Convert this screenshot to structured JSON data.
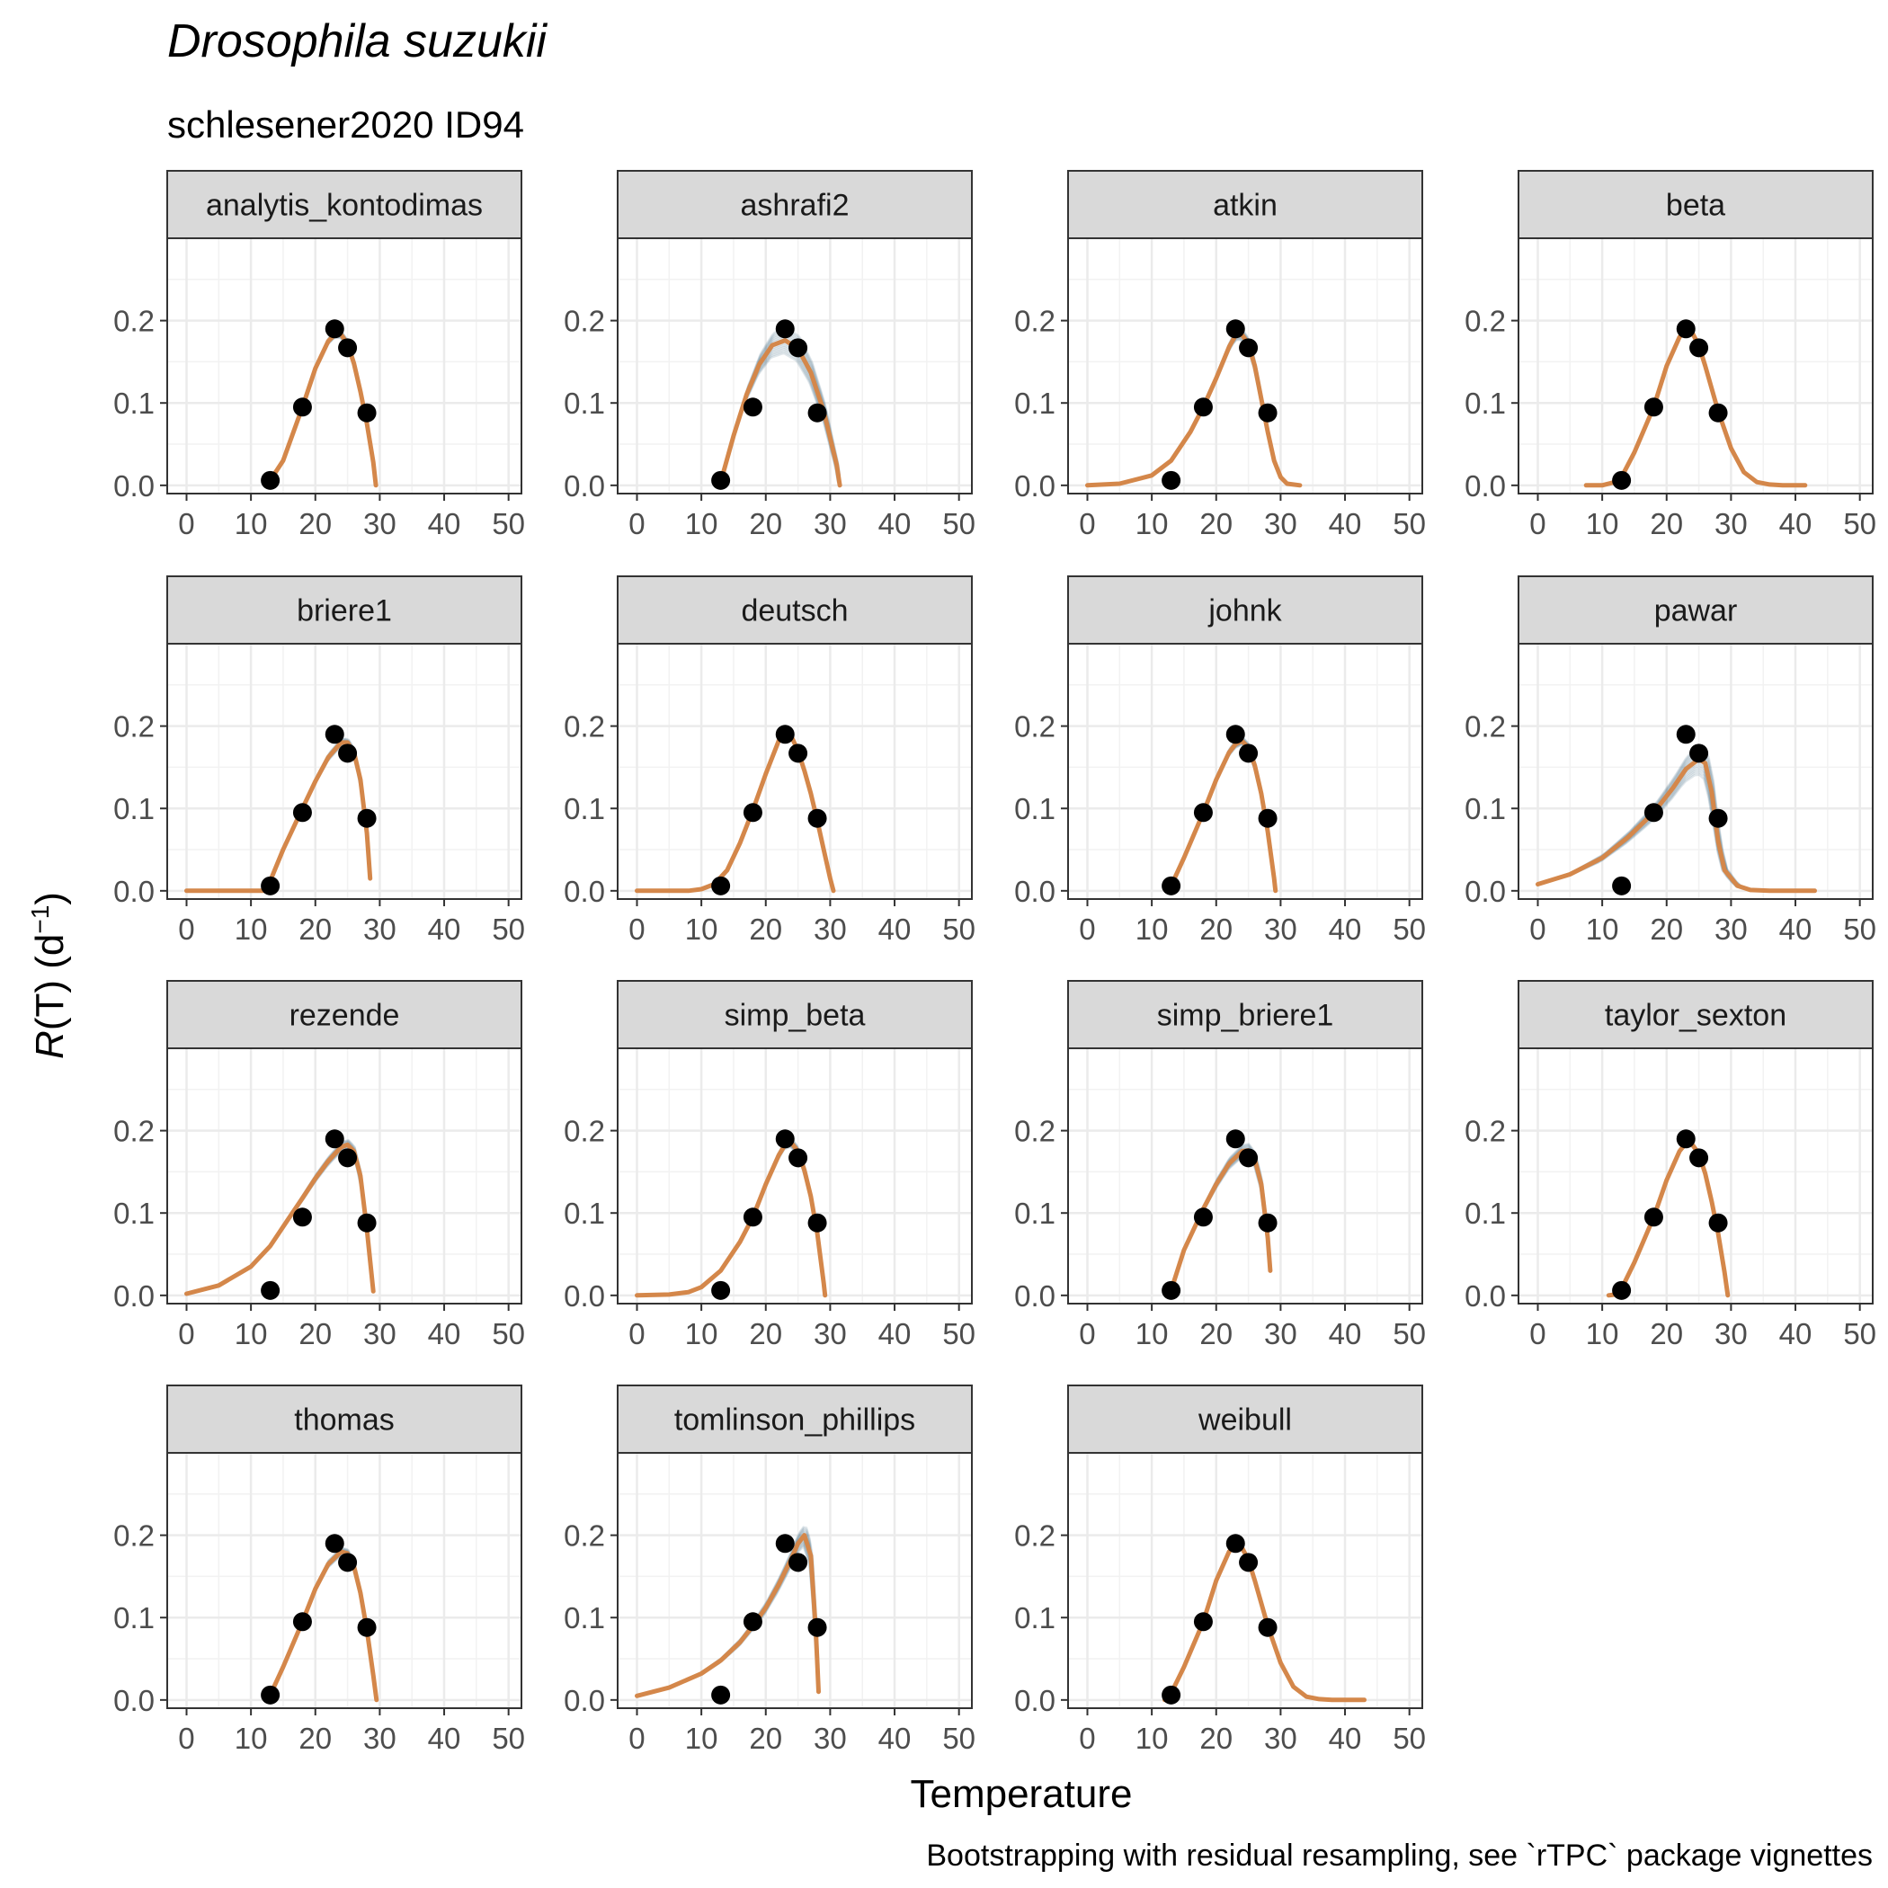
{
  "title": "Drosophila suzukii",
  "subtitle": "schlesener2020 ID94",
  "caption": "Bootstrapping with residual resampling, see `rTPC` package vignettes",
  "xlabel": "Temperature",
  "ylabel": "R(T) (d⁻¹)",
  "ylabel_parts": {
    "italic": "R",
    "rest": "(T) (d",
    "sup": "−1",
    "close": ")"
  },
  "colors": {
    "fit": "#D4874A",
    "bootstrap": "#1B4F6B",
    "points": "#000000",
    "strip": "#D9D9D9",
    "grid": "#EBEBEB"
  },
  "chart_data": {
    "type": "scatter",
    "layout": "facet-grid 4 columns",
    "xlim": [
      -3,
      52
    ],
    "ylim": [
      -0.01,
      0.3
    ],
    "x_ticks": [
      0,
      10,
      20,
      30,
      40,
      50
    ],
    "y_ticks": [
      0.0,
      0.1,
      0.2
    ],
    "y_tick_labels": [
      "0.0",
      "0.1",
      "0.2"
    ],
    "points": [
      [
        13,
        0.006
      ],
      [
        18,
        0.095
      ],
      [
        23,
        0.19
      ],
      [
        25,
        0.167
      ],
      [
        28,
        0.088
      ]
    ],
    "panels": [
      {
        "name": "analytis_kontodimas",
        "fit_range": [
          12.8,
          29.4
        ],
        "fit": [
          [
            12.8,
            0.0
          ],
          [
            13,
            0.006
          ],
          [
            15,
            0.03
          ],
          [
            18,
            0.095
          ],
          [
            20,
            0.142
          ],
          [
            22,
            0.175
          ],
          [
            23,
            0.183
          ],
          [
            24,
            0.183
          ],
          [
            25,
            0.172
          ],
          [
            26,
            0.148
          ],
          [
            27,
            0.114
          ],
          [
            28,
            0.075
          ],
          [
            29,
            0.028
          ],
          [
            29.4,
            0.0
          ]
        ],
        "boot_spread": 0.01
      },
      {
        "name": "ashrafi2",
        "fit_range": [
          13.0,
          31.5
        ],
        "fit": [
          [
            13,
            0.004
          ],
          [
            15,
            0.06
          ],
          [
            17,
            0.11
          ],
          [
            19,
            0.147
          ],
          [
            21,
            0.17
          ],
          [
            23,
            0.176
          ],
          [
            25,
            0.166
          ],
          [
            27,
            0.137
          ],
          [
            29,
            0.09
          ],
          [
            31,
            0.025
          ],
          [
            31.5,
            0.0
          ]
        ],
        "boot_spread": 0.04
      },
      {
        "name": "atkin",
        "fit_range": [
          0,
          33
        ],
        "fit": [
          [
            0,
            0.0
          ],
          [
            5,
            0.002
          ],
          [
            10,
            0.012
          ],
          [
            13,
            0.03
          ],
          [
            16,
            0.065
          ],
          [
            18,
            0.095
          ],
          [
            20,
            0.13
          ],
          [
            22,
            0.168
          ],
          [
            23,
            0.182
          ],
          [
            24,
            0.183
          ],
          [
            25,
            0.172
          ],
          [
            26,
            0.145
          ],
          [
            27,
            0.105
          ],
          [
            28,
            0.065
          ],
          [
            29,
            0.03
          ],
          [
            30,
            0.01
          ],
          [
            31,
            0.002
          ],
          [
            33,
            0.0
          ]
        ],
        "boot_spread": 0.015
      },
      {
        "name": "beta",
        "fit_range": [
          7.5,
          41.5
        ],
        "fit": [
          [
            7.5,
            0.0
          ],
          [
            10,
            0.0
          ],
          [
            12,
            0.004
          ],
          [
            13,
            0.01
          ],
          [
            15,
            0.04
          ],
          [
            18,
            0.095
          ],
          [
            20,
            0.145
          ],
          [
            22,
            0.18
          ],
          [
            23,
            0.188
          ],
          [
            24,
            0.185
          ],
          [
            25,
            0.17
          ],
          [
            26,
            0.145
          ],
          [
            28,
            0.09
          ],
          [
            30,
            0.045
          ],
          [
            32,
            0.016
          ],
          [
            34,
            0.004
          ],
          [
            36,
            0.001
          ],
          [
            38,
            0.0
          ],
          [
            41.5,
            0.0
          ]
        ],
        "boot_spread": 0.004
      },
      {
        "name": "briere1",
        "fit_range": [
          0,
          28.5
        ],
        "fit": [
          [
            0,
            0.0
          ],
          [
            11.5,
            0.0
          ],
          [
            12,
            0.0
          ],
          [
            13,
            0.012
          ],
          [
            15,
            0.05
          ],
          [
            18,
            0.1
          ],
          [
            20,
            0.133
          ],
          [
            22,
            0.162
          ],
          [
            24,
            0.18
          ],
          [
            25,
            0.18
          ],
          [
            26,
            0.168
          ],
          [
            27,
            0.135
          ],
          [
            28,
            0.07
          ],
          [
            28.5,
            0.015
          ]
        ],
        "boot_spread": 0.012
      },
      {
        "name": "deutsch",
        "fit_range": [
          0,
          30.5
        ],
        "fit": [
          [
            0,
            0.0
          ],
          [
            8,
            0.0
          ],
          [
            10,
            0.002
          ],
          [
            12,
            0.008
          ],
          [
            14,
            0.025
          ],
          [
            16,
            0.058
          ],
          [
            18,
            0.098
          ],
          [
            20,
            0.142
          ],
          [
            22,
            0.182
          ],
          [
            23,
            0.192
          ],
          [
            24,
            0.187
          ],
          [
            25,
            0.17
          ],
          [
            26,
            0.146
          ],
          [
            27,
            0.118
          ],
          [
            28,
            0.085
          ],
          [
            29,
            0.05
          ],
          [
            30,
            0.015
          ],
          [
            30.5,
            0.0
          ]
        ],
        "boot_spread": 0.005
      },
      {
        "name": "johnk",
        "fit_range": [
          13,
          29.2
        ],
        "fit": [
          [
            13,
            0.006
          ],
          [
            15,
            0.04
          ],
          [
            18,
            0.095
          ],
          [
            20,
            0.135
          ],
          [
            22,
            0.168
          ],
          [
            23,
            0.178
          ],
          [
            24,
            0.182
          ],
          [
            25,
            0.174
          ],
          [
            26,
            0.152
          ],
          [
            27,
            0.118
          ],
          [
            28,
            0.072
          ],
          [
            29,
            0.015
          ],
          [
            29.2,
            0.0
          ]
        ],
        "boot_spread": 0.012
      },
      {
        "name": "pawar",
        "fit_range": [
          0,
          43
        ],
        "fit": [
          [
            0,
            0.008
          ],
          [
            5,
            0.02
          ],
          [
            10,
            0.04
          ],
          [
            14,
            0.065
          ],
          [
            18,
            0.095
          ],
          [
            21,
            0.125
          ],
          [
            23,
            0.148
          ],
          [
            25,
            0.16
          ],
          [
            26,
            0.155
          ],
          [
            27,
            0.12
          ],
          [
            28,
            0.06
          ],
          [
            29,
            0.025
          ],
          [
            31,
            0.006
          ],
          [
            33,
            0.001
          ],
          [
            36,
            0.0
          ],
          [
            43,
            0.0
          ]
        ],
        "boot_spread": 0.05
      },
      {
        "name": "rezende",
        "fit_range": [
          0,
          29
        ],
        "fit": [
          [
            0,
            0.002
          ],
          [
            5,
            0.012
          ],
          [
            10,
            0.035
          ],
          [
            13,
            0.06
          ],
          [
            16,
            0.095
          ],
          [
            18,
            0.118
          ],
          [
            20,
            0.142
          ],
          [
            22,
            0.163
          ],
          [
            24,
            0.18
          ],
          [
            25,
            0.183
          ],
          [
            26,
            0.175
          ],
          [
            27,
            0.145
          ],
          [
            28,
            0.08
          ],
          [
            29,
            0.005
          ]
        ],
        "boot_spread": 0.015
      },
      {
        "name": "simp_beta",
        "fit_range": [
          0,
          29.2
        ],
        "fit": [
          [
            0,
            0.0
          ],
          [
            5,
            0.001
          ],
          [
            8,
            0.004
          ],
          [
            10,
            0.01
          ],
          [
            13,
            0.03
          ],
          [
            16,
            0.065
          ],
          [
            18,
            0.095
          ],
          [
            20,
            0.135
          ],
          [
            22,
            0.17
          ],
          [
            23,
            0.183
          ],
          [
            24,
            0.185
          ],
          [
            25,
            0.175
          ],
          [
            26,
            0.152
          ],
          [
            27,
            0.12
          ],
          [
            28,
            0.075
          ],
          [
            29,
            0.015
          ],
          [
            29.2,
            0.0
          ]
        ],
        "boot_spread": 0.012
      },
      {
        "name": "simp_briere1",
        "fit_range": [
          13,
          28.4
        ],
        "fit": [
          [
            13,
            0.006
          ],
          [
            15,
            0.055
          ],
          [
            18,
            0.105
          ],
          [
            20,
            0.135
          ],
          [
            22,
            0.16
          ],
          [
            24,
            0.175
          ],
          [
            25,
            0.176
          ],
          [
            26,
            0.165
          ],
          [
            27,
            0.135
          ],
          [
            28,
            0.07
          ],
          [
            28.4,
            0.03
          ]
        ],
        "boot_spread": 0.02
      },
      {
        "name": "taylor_sexton",
        "fit_range": [
          11,
          29.5
        ],
        "fit": [
          [
            11,
            0.0
          ],
          [
            12,
            0.001
          ],
          [
            13,
            0.008
          ],
          [
            15,
            0.04
          ],
          [
            18,
            0.095
          ],
          [
            20,
            0.14
          ],
          [
            22,
            0.175
          ],
          [
            23,
            0.185
          ],
          [
            24,
            0.183
          ],
          [
            25,
            0.172
          ],
          [
            26,
            0.148
          ],
          [
            27,
            0.114
          ],
          [
            28,
            0.075
          ],
          [
            29,
            0.028
          ],
          [
            29.5,
            0.0
          ]
        ],
        "boot_spread": 0.006
      },
      {
        "name": "thomas",
        "fit_range": [
          13,
          29.5
        ],
        "fit": [
          [
            13,
            0.006
          ],
          [
            15,
            0.04
          ],
          [
            18,
            0.095
          ],
          [
            20,
            0.135
          ],
          [
            22,
            0.165
          ],
          [
            24,
            0.18
          ],
          [
            25,
            0.178
          ],
          [
            26,
            0.162
          ],
          [
            27,
            0.13
          ],
          [
            28,
            0.085
          ],
          [
            29,
            0.03
          ],
          [
            29.5,
            0.0
          ]
        ],
        "boot_spread": 0.012
      },
      {
        "name": "tomlinson_phillips",
        "fit_range": [
          0,
          28.2
        ],
        "fit": [
          [
            0,
            0.005
          ],
          [
            5,
            0.015
          ],
          [
            10,
            0.032
          ],
          [
            13,
            0.048
          ],
          [
            16,
            0.07
          ],
          [
            18,
            0.09
          ],
          [
            20,
            0.112
          ],
          [
            22,
            0.14
          ],
          [
            24,
            0.172
          ],
          [
            25,
            0.19
          ],
          [
            26,
            0.2
          ],
          [
            27,
            0.175
          ],
          [
            27.8,
            0.08
          ],
          [
            28.2,
            0.01
          ]
        ],
        "boot_spread": 0.03
      },
      {
        "name": "weibull",
        "fit_range": [
          12,
          43
        ],
        "fit": [
          [
            12,
            0.0
          ],
          [
            13,
            0.008
          ],
          [
            15,
            0.04
          ],
          [
            18,
            0.095
          ],
          [
            20,
            0.145
          ],
          [
            22,
            0.18
          ],
          [
            23,
            0.188
          ],
          [
            24,
            0.185
          ],
          [
            25,
            0.17
          ],
          [
            26,
            0.145
          ],
          [
            28,
            0.09
          ],
          [
            30,
            0.045
          ],
          [
            32,
            0.016
          ],
          [
            34,
            0.004
          ],
          [
            36,
            0.001
          ],
          [
            38,
            0.0
          ],
          [
            43,
            0.0
          ]
        ],
        "boot_spread": 0.003
      }
    ]
  }
}
